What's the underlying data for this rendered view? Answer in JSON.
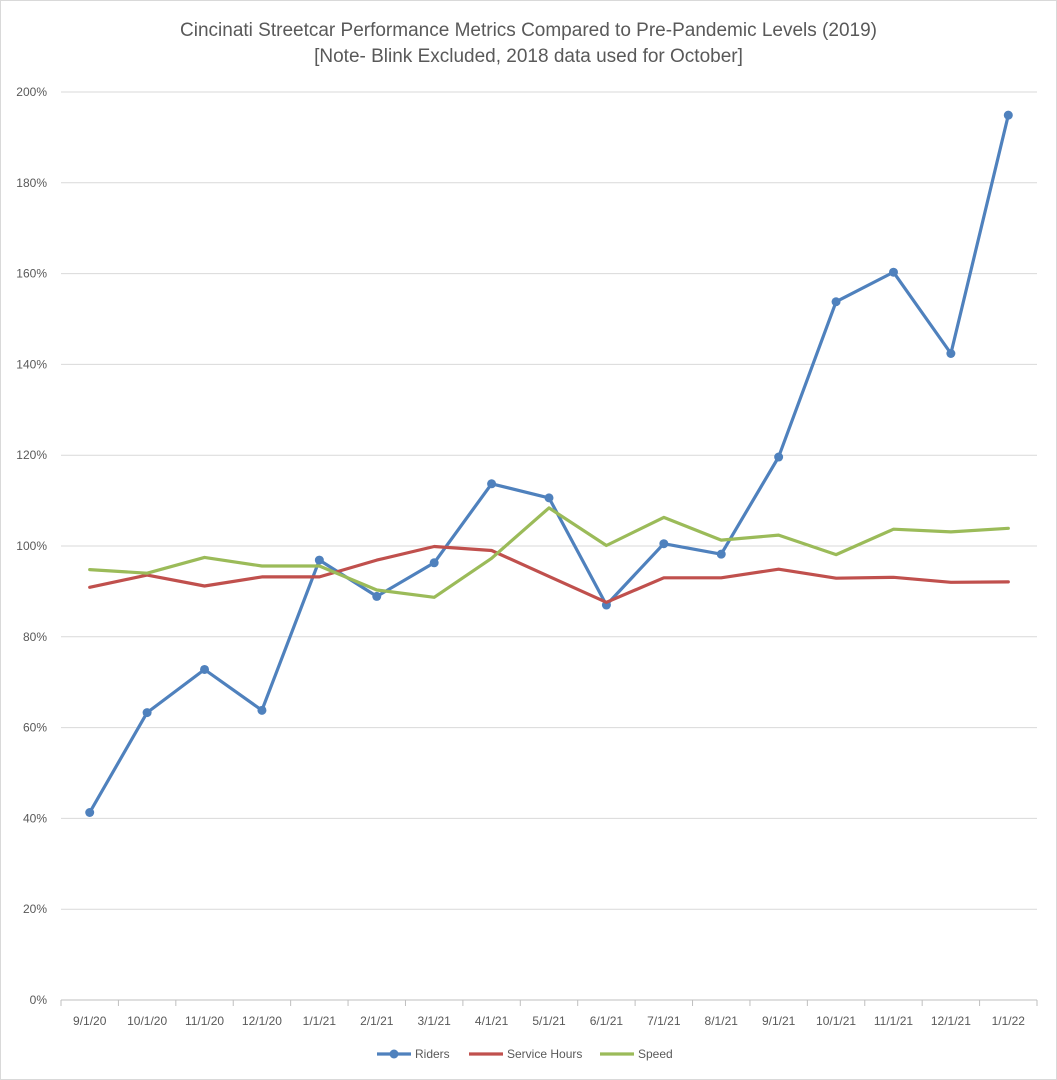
{
  "chart_data": {
    "type": "line",
    "title": "Cincinati Streetcar Performance Metrics Compared to Pre-Pandemic Levels  (2019)",
    "subtitle": "[Note- Blink Excluded, 2018 data used for October]",
    "xlabel": "",
    "ylabel": "",
    "categories": [
      "9/1/20",
      "10/1/20",
      "11/1/20",
      "12/1/20",
      "1/1/21",
      "2/1/21",
      "3/1/21",
      "4/1/21",
      "5/1/21",
      "6/1/21",
      "7/1/21",
      "8/1/21",
      "9/1/21",
      "10/1/21",
      "11/1/21",
      "12/1/21",
      "1/1/22"
    ],
    "ylim": [
      0,
      200
    ],
    "yticks": [
      0,
      20,
      40,
      60,
      80,
      100,
      120,
      140,
      160,
      180,
      200
    ],
    "ytick_labels": [
      "0%",
      "20%",
      "40%",
      "60%",
      "80%",
      "100%",
      "120%",
      "140%",
      "160%",
      "180%",
      "200%"
    ],
    "grid": true,
    "legend_position": "bottom",
    "series": [
      {
        "name": "Riders",
        "color": "#4f81bd",
        "marker": "circle",
        "values": [
          41.3,
          63.3,
          72.8,
          63.8,
          96.9,
          88.9,
          96.3,
          113.7,
          110.6,
          87.0,
          100.5,
          98.2,
          119.6,
          153.8,
          160.3,
          142.4,
          194.9
        ]
      },
      {
        "name": "Service Hours",
        "color": "#c0504d",
        "marker": "none",
        "values": [
          90.9,
          93.6,
          91.2,
          93.2,
          93.2,
          96.9,
          99.9,
          99.0,
          93.3,
          87.6,
          93.0,
          93.0,
          94.9,
          92.9,
          93.1,
          92.0,
          92.1
        ]
      },
      {
        "name": "Speed",
        "color": "#9bbb59",
        "marker": "none",
        "values": [
          94.8,
          94.0,
          97.5,
          95.6,
          95.6,
          90.3,
          88.7,
          97.3,
          108.4,
          100.1,
          106.3,
          101.3,
          102.4,
          98.1,
          103.7,
          103.1,
          103.9
        ]
      }
    ]
  }
}
